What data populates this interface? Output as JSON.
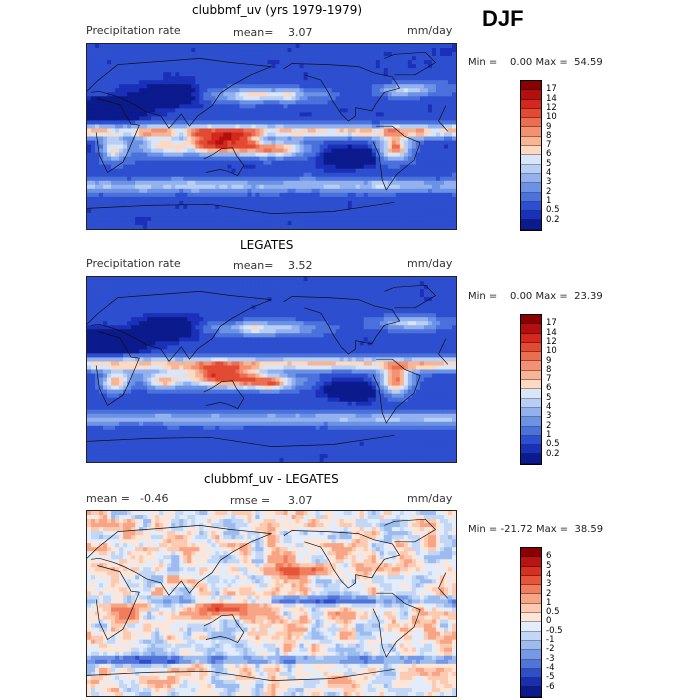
{
  "season": "DJF",
  "panels": [
    {
      "id": "model",
      "title": "clubbmf_uv (yrs 1979-1979)",
      "left_label": "Precipitation rate",
      "mid_label": "mean=",
      "mid_value": "3.07",
      "right_label": "mm/day",
      "stats": {
        "min_label": "Min =",
        "min": "0.00",
        "max_label": "Max =",
        "max": "54.59"
      }
    },
    {
      "id": "obs",
      "title": "LEGATES",
      "left_label": "Precipitation rate",
      "mid_label": "mean=",
      "mid_value": "3.52",
      "right_label": "mm/day",
      "stats": {
        "min_label": "Min =",
        "min": "0.00",
        "max_label": "Max =",
        "max": "23.39"
      }
    },
    {
      "id": "diff",
      "title": "clubbmf_uv - LEGATES",
      "left_label": "mean =",
      "left_value": "-0.46",
      "mid_label": "rmse =",
      "mid_value": "3.07",
      "right_label": "mm/day",
      "stats": {
        "min_label": "Min =",
        "min": "-21.72",
        "max_label": "Max =",
        "max": "38.59"
      }
    }
  ],
  "chart_data": [
    {
      "type": "heatmap",
      "title": "clubbmf_uv (yrs 1979-1979)",
      "subtitle": "Precipitation rate",
      "units": "mm/day",
      "mean": 3.07,
      "min": 0.0,
      "max": 54.59,
      "colorbar": {
        "levels": [
          17,
          14,
          12,
          10,
          9,
          8,
          7,
          6,
          5,
          4,
          3,
          2,
          1,
          0.5,
          0.2
        ],
        "colors": [
          "#8b0000",
          "#b30f0f",
          "#d4281e",
          "#e24a33",
          "#ec6e50",
          "#f39272",
          "#f8b594",
          "#fdd9c2",
          "#d9e6fa",
          "#b8cff5",
          "#92b1ee",
          "#6c92e6",
          "#4a71dc",
          "#2d4fcf",
          "#1a30b8",
          "#0b1a8c"
        ]
      }
    },
    {
      "type": "heatmap",
      "title": "LEGATES",
      "subtitle": "Precipitation rate",
      "units": "mm/day",
      "mean": 3.52,
      "min": 0.0,
      "max": 23.39,
      "colorbar": {
        "levels": [
          17,
          14,
          12,
          10,
          9,
          8,
          7,
          6,
          5,
          4,
          3,
          2,
          1,
          0.5,
          0.2
        ],
        "colors": [
          "#8b0000",
          "#b30f0f",
          "#d4281e",
          "#e24a33",
          "#ec6e50",
          "#f39272",
          "#f8b594",
          "#fdd9c2",
          "#d9e6fa",
          "#b8cff5",
          "#92b1ee",
          "#6c92e6",
          "#4a71dc",
          "#2d4fcf",
          "#1a30b8",
          "#0b1a8c"
        ]
      }
    },
    {
      "type": "heatmap",
      "title": "clubbmf_uv - LEGATES",
      "units": "mm/day",
      "mean": -0.46,
      "rmse": 3.07,
      "min": -21.72,
      "max": 38.59,
      "colorbar": {
        "levels": [
          6,
          5,
          4,
          3,
          2,
          1,
          0.5,
          0,
          -0.5,
          -1,
          -2,
          -3,
          -4,
          -5,
          -6
        ],
        "colors": [
          "#8b0000",
          "#b81414",
          "#d63020",
          "#e6553a",
          "#f07d5c",
          "#f7a585",
          "#fccab0",
          "#fde6d8",
          "#e2ecfb",
          "#c2d6f6",
          "#9cbbef",
          "#7599e6",
          "#5074da",
          "#2e4fc9",
          "#1a2fad",
          "#0b1a8c"
        ]
      }
    }
  ]
}
